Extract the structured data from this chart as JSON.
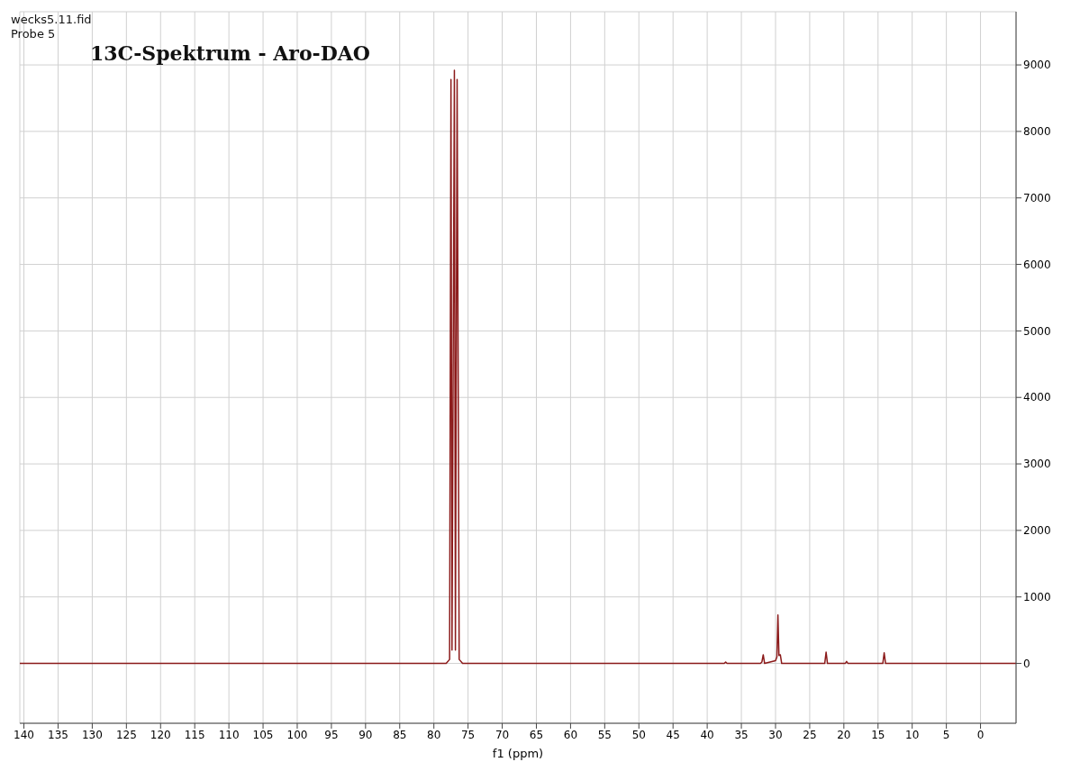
{
  "chart_data": {
    "type": "line",
    "title": "13C-Spektrum - Aro-DAO",
    "xlabel": "f1 (ppm)",
    "annotations": [
      "wecks5.11.fid",
      "Probe 5"
    ],
    "x": [
      140.6,
      120,
      100,
      80,
      78.2,
      77.7,
      77.5,
      77.35,
      77.0,
      76.85,
      76.6,
      76.3,
      75.8,
      60,
      40,
      37.5,
      37.3,
      37.1,
      32.2,
      32.0,
      31.8,
      31.6,
      30.0,
      29.8,
      29.65,
      29.5,
      29.3,
      29.1,
      23,
      22.8,
      22.6,
      22.4,
      19.8,
      19.6,
      19.4,
      14.3,
      14.1,
      13.9,
      5,
      -5.2
    ],
    "series": [
      {
        "color": "#8b1a1a",
        "values": [
          0,
          0,
          0,
          0,
          0,
          60,
          8780,
          200,
          8920,
          200,
          8780,
          60,
          0,
          0,
          0,
          0,
          20,
          0,
          0,
          20,
          130,
          0,
          40,
          100,
          730,
          120,
          130,
          0,
          0,
          0,
          170,
          0,
          0,
          30,
          0,
          0,
          160,
          0,
          0,
          0
        ]
      }
    ],
    "xlim": [
      140.6,
      -5.2
    ],
    "xticks": [
      140,
      135,
      130,
      125,
      120,
      115,
      110,
      105,
      100,
      95,
      90,
      85,
      80,
      75,
      70,
      65,
      60,
      55,
      50,
      45,
      40,
      35,
      30,
      25,
      20,
      15,
      10,
      5,
      0
    ],
    "ylim": [
      -900,
      9800
    ],
    "yticks": [
      0,
      1000,
      2000,
      3000,
      4000,
      5000,
      6000,
      7000,
      8000,
      9000
    ],
    "grid": true,
    "marker": "none",
    "line_style": "solid"
  }
}
